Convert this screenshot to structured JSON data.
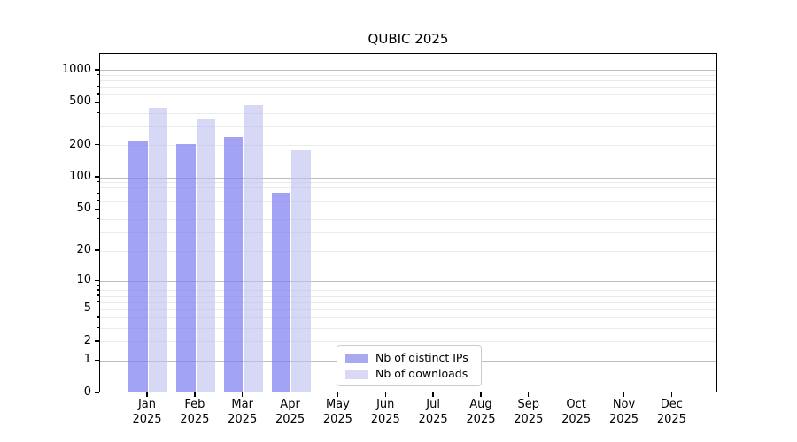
{
  "chart_data": {
    "type": "bar",
    "title": "QUBIC 2025",
    "categories": [
      "Jan",
      "Feb",
      "Mar",
      "Apr",
      "May",
      "Jun",
      "Jul",
      "Aug",
      "Sep",
      "Oct",
      "Nov",
      "Dec"
    ],
    "year_label": "2025",
    "series": [
      {
        "name": "Nb of distinct IPs",
        "color": "rgba(128,128,242,0.72)",
        "legend_swatch_color": "#a9a9f2",
        "values": [
          210,
          200,
          230,
          70,
          null,
          null,
          null,
          null,
          null,
          null,
          null,
          null
        ]
      },
      {
        "name": "Nb of downloads",
        "color": "rgba(190,190,241,0.62)",
        "legend_swatch_color": "#d9d9f6",
        "values": [
          430,
          340,
          460,
          175,
          null,
          null,
          null,
          null,
          null,
          null,
          null,
          null
        ]
      }
    ],
    "y_ticks": [
      1000,
      500,
      200,
      100,
      50,
      20,
      10,
      5,
      2,
      1,
      0
    ],
    "ylim": [
      0,
      1430
    ],
    "yscale": "log1p",
    "grid": "horizontal, major decades darker, minor faint",
    "legend_position": "lower center inside plot",
    "xlabel": "",
    "ylabel": ""
  },
  "legend": {
    "items": [
      {
        "label": "Nb of distinct IPs"
      },
      {
        "label": "Nb of downloads"
      }
    ]
  },
  "colors": {
    "major_gridline": "#bdbdbd",
    "minor_gridline": "#ebebeb",
    "axis_spine": "#000000",
    "background": "#ffffff"
  }
}
